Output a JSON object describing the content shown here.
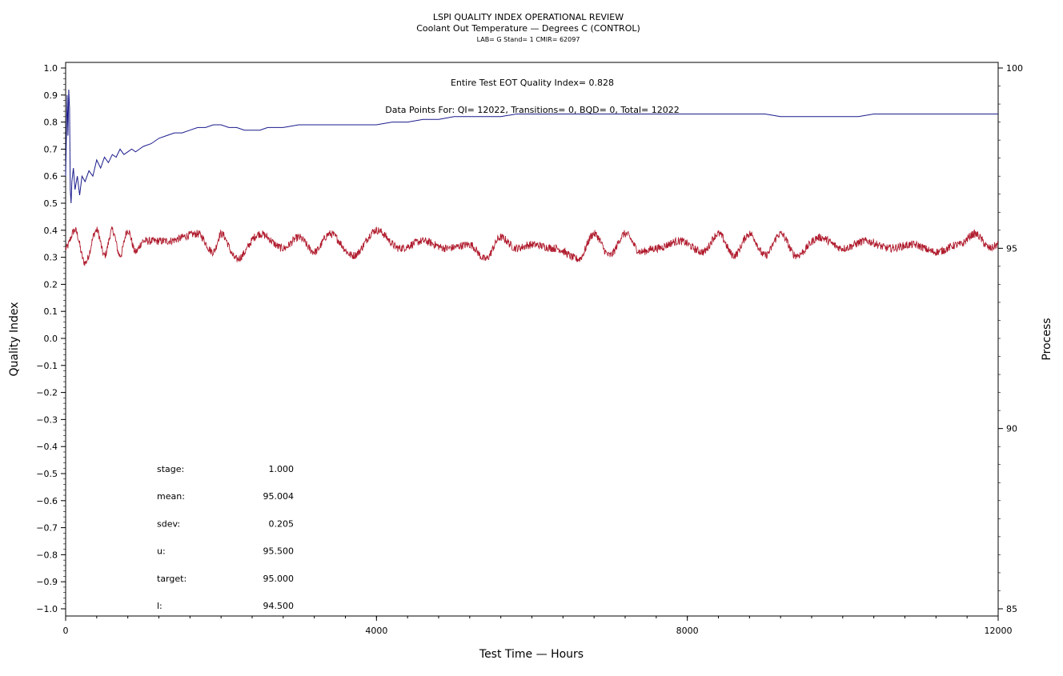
{
  "chart_data": {
    "type": "line",
    "title": "LSPI QUALITY INDEX OPERATIONAL REVIEW",
    "subtitle": "Coolant Out Temperature — Degrees C (CONTROL)",
    "subsubtitle": "LAB= G Stand= 1 CMIR= 62097",
    "xlabel": "Test Time — Hours",
    "ylabel": "Quality Index",
    "y2label": "Process",
    "xlim": [
      0,
      12000
    ],
    "ylim": [
      -1.0,
      1.0
    ],
    "y2lim": [
      85,
      100
    ],
    "x_ticks": [
      0,
      4000,
      8000,
      12000
    ],
    "x_tick_labels": [
      "0",
      "4000",
      "8000",
      "12000"
    ],
    "y_ticks": [
      1.0,
      0.9,
      0.8,
      0.7,
      0.6,
      0.5,
      0.4,
      0.3,
      0.2,
      0.1,
      0.0,
      -0.1,
      -0.2,
      -0.3,
      -0.4,
      -0.5,
      -0.6,
      -0.7,
      -0.8,
      -0.9,
      -1.0
    ],
    "y_tick_labels": [
      "1.0",
      "0.9",
      "0.8",
      "0.7",
      "0.6",
      "0.5",
      "0.4",
      "0.3",
      "0.2",
      "0.1",
      "0.0",
      "−0.1",
      "−0.2",
      "−0.3",
      "−0.4",
      "−0.5",
      "−0.6",
      "−0.7",
      "−0.8",
      "−0.9",
      "−1.0"
    ],
    "y2_ticks": [
      100,
      95,
      90,
      85
    ],
    "y2_tick_labels": [
      "100",
      "95",
      "90",
      "85"
    ],
    "annotations": [
      "Entire Test EOT Quality Index=   0.828",
      "Data Points For: QI=  12022, Transitions=     0, BQD=     0, Total=  12022"
    ],
    "series": [
      {
        "axis": "left",
        "color": "#1a1a8c",
        "x": [
          0,
          20,
          30,
          40,
          50,
          60,
          70,
          80,
          100,
          120,
          150,
          180,
          210,
          250,
          300,
          350,
          400,
          450,
          500,
          550,
          600,
          650,
          700,
          750,
          800,
          850,
          900,
          950,
          1000,
          1100,
          1200,
          1300,
          1400,
          1500,
          1600,
          1700,
          1800,
          1900,
          2000,
          2100,
          2200,
          2300,
          2400,
          2500,
          2600,
          2800,
          3000,
          3200,
          3400,
          3600,
          3800,
          4000,
          4200,
          4400,
          4600,
          4800,
          5000,
          5200,
          5400,
          5600,
          5800,
          6000,
          6200,
          6400,
          6600,
          6800,
          7000,
          7200,
          7400,
          7600,
          7800,
          8000,
          8200,
          8400,
          8600,
          8800,
          9000,
          9200,
          9400,
          9600,
          9800,
          10000,
          10200,
          10400,
          10600,
          10800,
          11000,
          11200,
          11400,
          11600,
          11800,
          12000
        ],
        "y": [
          0.6,
          0.9,
          0.75,
          0.92,
          0.85,
          0.55,
          0.5,
          0.58,
          0.63,
          0.55,
          0.6,
          0.53,
          0.6,
          0.58,
          0.62,
          0.6,
          0.66,
          0.63,
          0.67,
          0.65,
          0.68,
          0.67,
          0.7,
          0.68,
          0.69,
          0.7,
          0.69,
          0.7,
          0.71,
          0.72,
          0.74,
          0.75,
          0.76,
          0.76,
          0.77,
          0.78,
          0.78,
          0.79,
          0.79,
          0.78,
          0.78,
          0.77,
          0.77,
          0.77,
          0.78,
          0.78,
          0.79,
          0.79,
          0.79,
          0.79,
          0.79,
          0.79,
          0.8,
          0.8,
          0.81,
          0.81,
          0.82,
          0.82,
          0.82,
          0.82,
          0.83,
          0.83,
          0.83,
          0.83,
          0.83,
          0.83,
          0.83,
          0.83,
          0.83,
          0.83,
          0.83,
          0.83,
          0.83,
          0.83,
          0.83,
          0.83,
          0.83,
          0.82,
          0.82,
          0.82,
          0.82,
          0.82,
          0.82,
          0.83,
          0.83,
          0.83,
          0.83,
          0.83,
          0.83,
          0.83,
          0.83,
          0.83
        ]
      },
      {
        "axis": "right",
        "color": "#b01c2e",
        "mean": 95.004,
        "sdev": 0.205,
        "description_points_x": [
          0,
          120,
          250,
          400,
          500,
          600,
          700,
          800,
          900,
          1000,
          1300,
          1700,
          1900,
          2000,
          2200,
          2500,
          2800,
          3000,
          3200,
          3400,
          3700,
          4000,
          4300,
          4600,
          4900,
          5200,
          5400,
          5600,
          5800,
          6000,
          6300,
          6600,
          6800,
          7000,
          7200,
          7400,
          7600,
          7900,
          8200,
          8400,
          8600,
          8800,
          9000,
          9200,
          9400,
          9700,
          10000,
          10300,
          10600,
          10900,
          11200,
          11500,
          11700,
          11900,
          12000
        ],
        "description_points_y": [
          95.0,
          95.5,
          94.6,
          95.5,
          94.8,
          95.5,
          94.8,
          95.5,
          94.9,
          95.2,
          95.2,
          95.4,
          94.9,
          95.4,
          94.7,
          95.4,
          95.0,
          95.3,
          94.9,
          95.4,
          94.8,
          95.5,
          95.0,
          95.2,
          95.0,
          95.1,
          94.7,
          95.3,
          95.0,
          95.1,
          95.0,
          94.7,
          95.4,
          94.8,
          95.4,
          94.9,
          95.0,
          95.2,
          94.9,
          95.4,
          94.8,
          95.4,
          94.8,
          95.4,
          94.8,
          95.3,
          95.0,
          95.2,
          95.0,
          95.1,
          94.9,
          95.1,
          95.4,
          95.0,
          95.1
        ]
      }
    ]
  },
  "stats": [
    {
      "label": "stage:",
      "value": "1.000"
    },
    {
      "label": "mean:",
      "value": "95.004"
    },
    {
      "label": "sdev:",
      "value": "0.205"
    },
    {
      "label": "u:",
      "value": "95.500"
    },
    {
      "label": "target:",
      "value": "95.000"
    },
    {
      "label": "l:",
      "value": "94.500"
    }
  ]
}
